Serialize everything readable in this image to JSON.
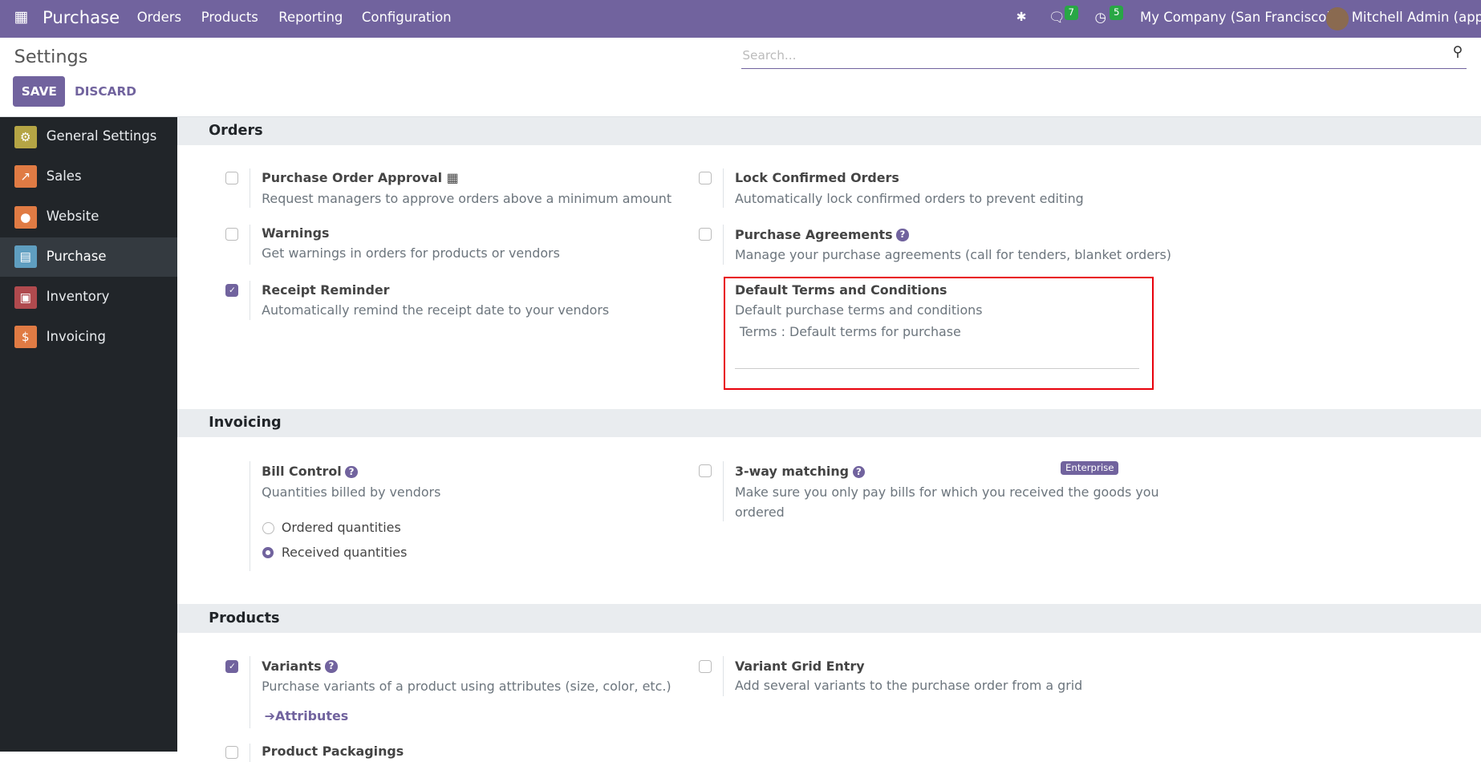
{
  "topbar": {
    "app": "Purchase",
    "menu": [
      "Orders",
      "Products",
      "Reporting",
      "Configuration"
    ],
    "messages_count": "7",
    "activities_count": "5",
    "company": "My Company (San Francisco)",
    "user": "Mitchell Admin (app)",
    "color": "#71639e"
  },
  "control_panel": {
    "title": "Settings",
    "save": "SAVE",
    "discard": "DISCARD",
    "search_placeholder": "Search..."
  },
  "sidebar": {
    "items": [
      {
        "label": "General Settings",
        "icon": "gear-icon",
        "color": "#b5a545"
      },
      {
        "label": "Sales",
        "icon": "chart-icon",
        "color": "#e07b44"
      },
      {
        "label": "Website",
        "icon": "globe-icon",
        "color": "#e07b44"
      },
      {
        "label": "Purchase",
        "icon": "credit-card-icon",
        "color": "#5f9ec0",
        "active": true
      },
      {
        "label": "Inventory",
        "icon": "box-icon",
        "color": "#b04a4e"
      },
      {
        "label": "Invoicing",
        "icon": "invoice-icon",
        "color": "#e07b44"
      }
    ]
  },
  "sections": {
    "orders": {
      "title": "Orders",
      "poa": {
        "title": "Purchase Order Approval",
        "desc": "Request managers to approve orders above a minimum amount",
        "checked": false
      },
      "lock": {
        "title": "Lock Confirmed Orders",
        "desc": "Automatically lock confirmed orders to prevent editing",
        "checked": false
      },
      "warnings": {
        "title": "Warnings",
        "desc": "Get warnings in orders for products or vendors",
        "checked": false
      },
      "agreements": {
        "title": "Purchase Agreements",
        "desc": "Manage your purchase agreements (call for tenders, blanket orders)",
        "checked": false
      },
      "reminder": {
        "title": "Receipt Reminder",
        "desc": "Automatically remind the receipt date to your vendors",
        "checked": true
      },
      "terms": {
        "title": "Default Terms and Conditions",
        "desc": "Default purchase terms and conditions",
        "value": "Terms : Default terms for purchase"
      }
    },
    "invoicing": {
      "title": "Invoicing",
      "bill": {
        "title": "Bill Control",
        "desc": "Quantities billed by vendors",
        "options": [
          "Ordered quantities",
          "Received quantities"
        ],
        "selected": "Received quantities"
      },
      "threeway": {
        "title": "3-way matching",
        "desc1": "Make sure you only pay bills for which you received the goods you",
        "desc2": "ordered",
        "badge": "Enterprise",
        "checked": false
      }
    },
    "products": {
      "title": "Products",
      "variants": {
        "title": "Variants",
        "desc": "Purchase variants of a product using attributes (size, color, etc.)",
        "link": "Attributes",
        "checked": true
      },
      "grid": {
        "title": "Variant Grid Entry",
        "desc": "Add several variants to the purchase order from a grid",
        "checked": false
      },
      "packagings": {
        "title": "Product Packagings",
        "checked": false
      }
    }
  }
}
